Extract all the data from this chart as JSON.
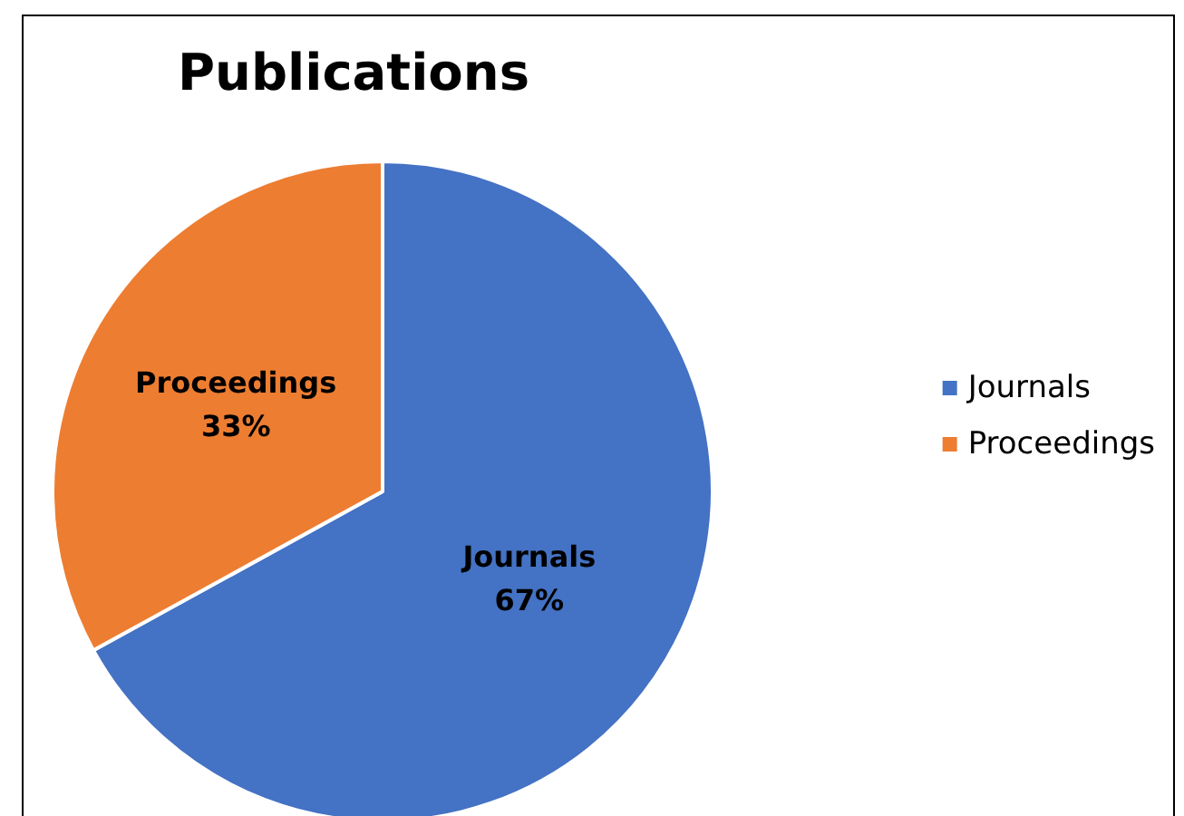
{
  "chart_data": {
    "type": "pie",
    "title": "Publications",
    "categories": [
      "Journals",
      "Proceedings"
    ],
    "values": [
      67,
      33
    ],
    "value_labels": [
      "67%",
      "33%"
    ],
    "colors": [
      "#4472c4",
      "#ed7d31"
    ],
    "legend": "right"
  }
}
